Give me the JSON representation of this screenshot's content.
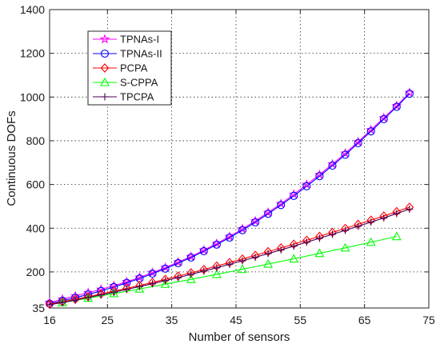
{
  "chart_data": {
    "type": "line",
    "title": "",
    "xlabel": "Number of sensors",
    "ylabel": "Continuous  DOFs",
    "xlim": [
      16,
      75
    ],
    "ylim": [
      35,
      1400
    ],
    "xticks": [
      16,
      25,
      35,
      45,
      55,
      65,
      75
    ],
    "yticks": [
      35,
      200,
      400,
      600,
      800,
      1000,
      1200,
      1400
    ],
    "grid": true,
    "legend_position": "top-left",
    "series": [
      {
        "name": "TPNAs-I",
        "color": "#ff00ff",
        "marker": "star",
        "x": [
          16,
          18,
          20,
          22,
          24,
          26,
          28,
          30,
          32,
          34,
          36,
          38,
          40,
          42,
          44,
          46,
          48,
          50,
          52,
          54,
          56,
          58,
          60,
          62,
          64,
          66,
          68,
          70,
          72
        ],
        "y": [
          60,
          75,
          90,
          105,
          120,
          137,
          155,
          175,
          197,
          220,
          245,
          270,
          300,
          330,
          362,
          397,
          433,
          472,
          512,
          555,
          600,
          645,
          693,
          743,
          795,
          850,
          905,
          960,
          1020
        ]
      },
      {
        "name": "TPNAs-II",
        "color": "#0000ff",
        "marker": "circle",
        "x": [
          16,
          18,
          20,
          22,
          24,
          26,
          28,
          30,
          32,
          34,
          36,
          38,
          40,
          42,
          44,
          46,
          48,
          50,
          52,
          54,
          56,
          58,
          60,
          62,
          64,
          66,
          68,
          70,
          72
        ],
        "y": [
          55,
          68,
          82,
          97,
          113,
          131,
          150,
          170,
          192,
          215,
          240,
          266,
          295,
          325,
          357,
          391,
          427,
          466,
          506,
          548,
          592,
          638,
          686,
          736,
          789,
          843,
          899,
          955,
          1015
        ]
      },
      {
        "name": "PCPA",
        "color": "#ff0000",
        "marker": "diamond",
        "x": [
          16,
          18,
          20,
          22,
          24,
          26,
          28,
          30,
          32,
          34,
          36,
          38,
          40,
          42,
          44,
          46,
          48,
          50,
          52,
          54,
          56,
          58,
          60,
          62,
          64,
          66,
          68,
          70,
          72
        ],
        "y": [
          52,
          63,
          75,
          87,
          99,
          112,
          125,
          138,
          152,
          166,
          181,
          196,
          211,
          227,
          243,
          259,
          276,
          293,
          310,
          327,
          345,
          363,
          381,
          399,
          418,
          437,
          456,
          476,
          496
        ]
      },
      {
        "name": "S-CPPA",
        "color": "#00ff00",
        "marker": "triangle",
        "x": [
          18,
          22,
          26,
          30,
          34,
          38,
          42,
          46,
          50,
          54,
          58,
          62,
          66,
          70
        ],
        "y": [
          60,
          80,
          101,
          122,
          144,
          166,
          189,
          212,
          236,
          260,
          285,
          310,
          336,
          362
        ]
      },
      {
        "name": "TPCPA",
        "color": "#4b0055",
        "marker": "plus",
        "x": [
          16,
          18,
          20,
          22,
          24,
          26,
          28,
          30,
          32,
          34,
          36,
          38,
          40,
          42,
          44,
          46,
          48,
          50,
          52,
          54,
          56,
          58,
          60,
          62,
          64,
          66,
          68,
          70,
          72
        ],
        "y": [
          50,
          60,
          71,
          83,
          95,
          107,
          120,
          133,
          146,
          160,
          174,
          189,
          204,
          219,
          235,
          251,
          267,
          284,
          301,
          318,
          336,
          354,
          372,
          390,
          409,
          428,
          447,
          467,
          487
        ]
      }
    ]
  }
}
